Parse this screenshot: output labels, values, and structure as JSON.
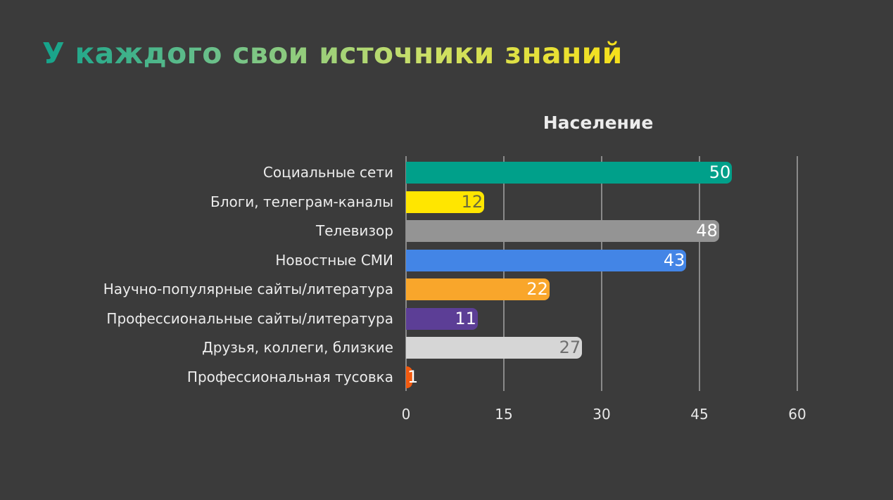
{
  "slide": {
    "title": "У каждого свои источники знаний"
  },
  "chart_data": {
    "type": "bar",
    "orientation": "horizontal",
    "title": "Население",
    "xlabel": "",
    "ylabel": "",
    "xlim": [
      0,
      60
    ],
    "xticks": [
      0,
      15,
      30,
      45,
      60
    ],
    "grid": true,
    "legend": null,
    "categories": [
      "Социальные сети",
      "Блоги, телеграм-каналы",
      "Телевизор",
      "Новостные СМИ",
      "Научно-популярные сайты/литература",
      "Профессиональные сайты/литература",
      "Друзья, коллеги, близкие",
      "Профессиональная тусовка"
    ],
    "values": [
      50,
      12,
      48,
      43,
      22,
      11,
      27,
      1
    ],
    "colors": [
      "#00a08a",
      "#ffe600",
      "#949494",
      "#4385e6",
      "#f9a62b",
      "#5c3e96",
      "#d6d6d6",
      "#f25a0f"
    ],
    "value_label_colors": [
      "#ffffff",
      "#6b6b3a",
      "#ffffff",
      "#ffffff",
      "#ffffff",
      "#ffffff",
      "#6f6f6f",
      "#ffffff"
    ]
  }
}
